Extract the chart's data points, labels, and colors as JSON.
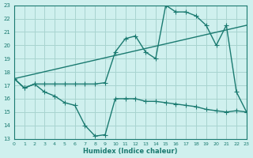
{
  "xlabel": "Humidex (Indice chaleur)",
  "bg_color": "#cff0ee",
  "grid_color": "#a8d4d0",
  "line_color": "#1a7a70",
  "xlim": [
    0,
    23
  ],
  "ylim": [
    13,
    23
  ],
  "xticks": [
    0,
    1,
    2,
    3,
    4,
    5,
    6,
    7,
    8,
    9,
    10,
    11,
    12,
    13,
    14,
    15,
    16,
    17,
    18,
    19,
    20,
    21,
    22,
    23
  ],
  "yticks": [
    13,
    14,
    15,
    16,
    17,
    18,
    19,
    20,
    21,
    22,
    23
  ],
  "line_ref": {
    "x": [
      0,
      23
    ],
    "y": [
      17.5,
      21.5
    ]
  },
  "line_hum": {
    "x": [
      0,
      1,
      2,
      3,
      4,
      5,
      6,
      7,
      8,
      9,
      10,
      11,
      12,
      13,
      14,
      15,
      16,
      17,
      18,
      19,
      20,
      21,
      22,
      23
    ],
    "y": [
      17.5,
      16.8,
      17.1,
      17.1,
      17.1,
      17.1,
      17.1,
      17.1,
      17.1,
      17.2,
      19.5,
      20.5,
      20.7,
      19.5,
      19.0,
      23.0,
      22.5,
      22.5,
      22.2,
      21.5,
      20.0,
      21.5,
      16.5,
      15.0
    ]
  },
  "line_low": {
    "x": [
      0,
      1,
      2,
      3,
      4,
      5,
      6,
      7,
      8,
      9,
      10,
      11,
      12,
      13,
      14,
      15,
      16,
      17,
      18,
      19,
      20,
      21,
      22,
      23
    ],
    "y": [
      17.5,
      16.8,
      17.1,
      16.5,
      16.2,
      15.7,
      15.5,
      14.0,
      13.2,
      13.3,
      16.0,
      16.0,
      16.0,
      15.8,
      15.8,
      15.7,
      15.6,
      15.5,
      15.4,
      15.2,
      15.1,
      15.0,
      15.1,
      15.0
    ]
  }
}
